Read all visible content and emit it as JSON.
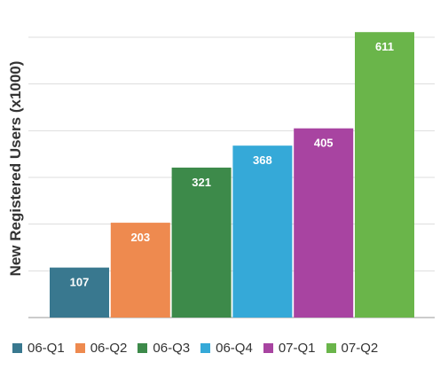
{
  "chart_data": {
    "type": "bar",
    "title": "",
    "xlabel": "",
    "ylabel": "New Registered Users (x1000)",
    "ylim": [
      0,
      600
    ],
    "grid": true,
    "legend_position": "bottom",
    "categories": [
      "06-Q1",
      "06-Q2",
      "06-Q3",
      "06-Q4",
      "07-Q1",
      "07-Q2"
    ],
    "values": [
      107,
      203,
      321,
      368,
      405,
      611
    ],
    "data_labels": [
      "107",
      "203",
      "321",
      "368",
      "405",
      "611"
    ],
    "colors": [
      "#39788f",
      "#ee8a4f",
      "#3d8a4a",
      "#35a9d8",
      "#a844a1",
      "#6ab54a"
    ]
  }
}
